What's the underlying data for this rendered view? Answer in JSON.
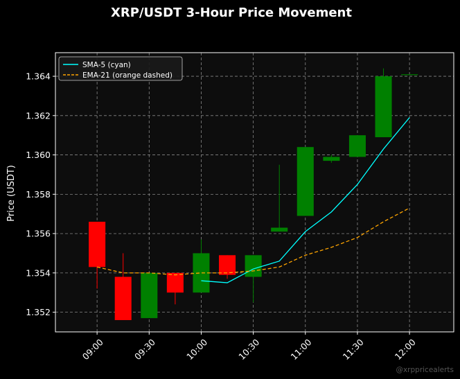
{
  "chart_data": {
    "type": "candlestick",
    "title": "XRP/USDT 3-Hour Price Movement",
    "ylabel": "Price (USDT)",
    "xlabel": "",
    "ylim": [
      1.351,
      1.3652
    ],
    "xlim": [
      -0.8,
      6.85
    ],
    "y_ticks": [
      "1.352",
      "1.354",
      "1.356",
      "1.358",
      "1.360",
      "1.362",
      "1.364"
    ],
    "x_ticks": [
      "09:00",
      "09:30",
      "10:00",
      "10:30",
      "11:00",
      "11:30",
      "12:00"
    ],
    "grid": true,
    "legend_position": "top-left",
    "colors": {
      "background": "#000000",
      "plot_background": "#0d0d0d",
      "up": "#008000",
      "down": "#ff0000",
      "sma": "#00ffff",
      "ema": "#ffa500",
      "grid": "#888888"
    },
    "candles": [
      {
        "time": "09:00",
        "open": 1.3566,
        "high": 1.3566,
        "low": 1.3532,
        "close": 1.3543
      },
      {
        "time": "09:15",
        "open": 1.3538,
        "high": 1.355,
        "low": 1.3516,
        "close": 1.3516
      },
      {
        "time": "09:30",
        "open": 1.3517,
        "high": 1.354,
        "low": 1.3517,
        "close": 1.354
      },
      {
        "time": "09:45",
        "open": 1.354,
        "high": 1.354,
        "low": 1.3524,
        "close": 1.353
      },
      {
        "time": "10:00",
        "open": 1.353,
        "high": 1.3557,
        "low": 1.353,
        "close": 1.355
      },
      {
        "time": "10:15",
        "open": 1.3549,
        "high": 1.3549,
        "low": 1.3537,
        "close": 1.3539
      },
      {
        "time": "10:30",
        "open": 1.3538,
        "high": 1.3549,
        "low": 1.3525,
        "close": 1.3549
      },
      {
        "time": "10:45",
        "open": 1.3561,
        "high": 1.3595,
        "low": 1.3561,
        "close": 1.3563
      },
      {
        "time": "11:00",
        "open": 1.3569,
        "high": 1.3604,
        "low": 1.3569,
        "close": 1.3604
      },
      {
        "time": "11:15",
        "open": 1.3597,
        "high": 1.36,
        "low": 1.3596,
        "close": 1.3599
      },
      {
        "time": "11:30",
        "open": 1.3599,
        "high": 1.361,
        "low": 1.3599,
        "close": 1.361
      },
      {
        "time": "11:45",
        "open": 1.3609,
        "high": 1.3644,
        "low": 1.3609,
        "close": 1.364
      },
      {
        "time": "12:00",
        "open": 1.3641,
        "high": 1.3641,
        "low": 1.3641,
        "close": 1.3641
      }
    ],
    "series": [
      {
        "name": "SMA-5 (cyan)",
        "style": "solid",
        "color": "#00ffff",
        "points": [
          {
            "time": "10:00",
            "value": 1.3536
          },
          {
            "time": "10:15",
            "value": 1.3535
          },
          {
            "time": "10:30",
            "value": 1.3542
          },
          {
            "time": "10:45",
            "value": 1.3546
          },
          {
            "time": "11:00",
            "value": 1.3561
          },
          {
            "time": "11:15",
            "value": 1.3571
          },
          {
            "time": "11:30",
            "value": 1.3585
          },
          {
            "time": "11:45",
            "value": 1.3603
          },
          {
            "time": "12:00",
            "value": 1.3619
          }
        ]
      },
      {
        "name": "EMA-21 (orange dashed)",
        "style": "dashed",
        "color": "#ffa500",
        "points": [
          {
            "time": "09:00",
            "value": 1.3543
          },
          {
            "time": "09:15",
            "value": 1.354
          },
          {
            "time": "09:30",
            "value": 1.354
          },
          {
            "time": "09:45",
            "value": 1.3539
          },
          {
            "time": "10:00",
            "value": 1.354
          },
          {
            "time": "10:15",
            "value": 1.354
          },
          {
            "time": "10:30",
            "value": 1.3541
          },
          {
            "time": "10:45",
            "value": 1.3543
          },
          {
            "time": "11:00",
            "value": 1.3549
          },
          {
            "time": "11:15",
            "value": 1.3553
          },
          {
            "time": "11:30",
            "value": 1.3558
          },
          {
            "time": "11:45",
            "value": 1.3566
          },
          {
            "time": "12:00",
            "value": 1.3573
          }
        ]
      }
    ],
    "watermark": "@xrppricealerts"
  }
}
